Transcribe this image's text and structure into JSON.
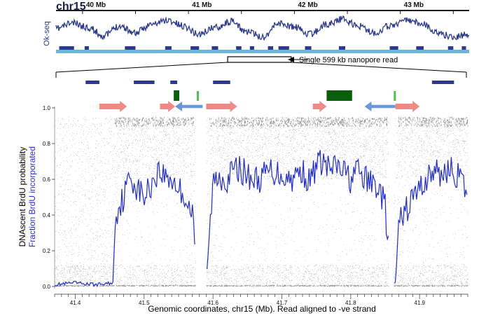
{
  "chart_data": [
    {
      "type": "line",
      "chrom_label": "chr15",
      "track_label": "Ok-seq",
      "xlim": [
        39.75,
        43.65
      ],
      "x_units": "Mb",
      "ticks": [
        40,
        40.5,
        41,
        41.5,
        42,
        42.5,
        43,
        43.5
      ],
      "tick_labels": [
        {
          "x": 40,
          "label": "40 Mb"
        },
        {
          "x": 41,
          "label": "41 Mb"
        },
        {
          "x": 42,
          "label": "42 Mb"
        },
        {
          "x": 43,
          "label": "43 Mb"
        }
      ],
      "okseq_profile": {
        "x": [
          39.75,
          39.9,
          40.05,
          40.2,
          40.35,
          40.5,
          40.65,
          40.8,
          40.95,
          41.1,
          41.25,
          41.4,
          41.55,
          41.7,
          41.85,
          42.0,
          42.15,
          42.3,
          42.45,
          42.6,
          42.75,
          42.9,
          43.05,
          43.2,
          43.35,
          43.5,
          43.65
        ],
        "values": [
          0.1,
          0.5,
          0.2,
          -0.4,
          0.3,
          -0.2,
          0.4,
          0.7,
          0.3,
          -0.3,
          0.2,
          0.6,
          -0.1,
          -0.5,
          0.5,
          0.2,
          -0.3,
          0.4,
          0.8,
          0.3,
          -0.2,
          0.3,
          0.7,
          0.5,
          -0.2,
          -0.5,
          -0.3
        ],
        "ylim": [
          -1,
          1
        ]
      },
      "segments_dark": [
        [
          39.78,
          39.92
        ],
        [
          40.02,
          40.06
        ],
        [
          40.4,
          40.5
        ],
        [
          40.78,
          40.84
        ],
        [
          41.02,
          41.1
        ],
        [
          41.22,
          41.28
        ],
        [
          41.45,
          41.5
        ],
        [
          41.58,
          41.62
        ],
        [
          41.75,
          41.8
        ],
        [
          41.85,
          41.95
        ],
        [
          42.1,
          42.16
        ],
        [
          42.42,
          42.48
        ],
        [
          42.9,
          42.98
        ],
        [
          43.15,
          43.22
        ],
        [
          43.45,
          43.5
        ],
        [
          43.58,
          43.62
        ]
      ],
      "segments_light": [
        [
          39.75,
          43.65
        ]
      ],
      "read_span": [
        41.37,
        41.97
      ],
      "read_annotation": "Single 599 kb nanopore read"
    },
    {
      "type": "scatter",
      "xlabel": "Genomic coordinates, chr15 (Mb). Read aligned to -ve strand",
      "ylabel": "DNAscent BrdU probability",
      "ylabel2": "Fraction BrdU incorporated",
      "xlim": [
        41.37,
        41.97
      ],
      "ylim": [
        0,
        1
      ],
      "x_ticks": [
        41.4,
        41.5,
        41.6,
        41.7,
        41.8,
        41.9
      ],
      "y_ticks": [
        0.0,
        0.2,
        0.4,
        0.6,
        0.8,
        1.0
      ],
      "y_tick_labels": [
        "0.0",
        "0.2",
        "0.4",
        "0.6",
        "0.8",
        "1.0"
      ],
      "gaps": [
        [
          41.575,
          41.59
        ],
        [
          41.855,
          41.862
        ]
      ],
      "fraction_brdu": {
        "x": [
          41.37,
          41.4,
          41.43,
          41.455,
          41.458,
          41.47,
          41.48,
          41.49,
          41.5,
          41.51,
          41.52,
          41.53,
          41.54,
          41.55,
          41.56,
          41.57,
          41.575,
          41.58,
          41.59,
          41.595,
          41.6,
          41.61,
          41.62,
          41.63,
          41.64,
          41.65,
          41.66,
          41.67,
          41.68,
          41.69,
          41.7,
          41.71,
          41.72,
          41.73,
          41.74,
          41.75,
          41.76,
          41.77,
          41.78,
          41.79,
          41.8,
          41.81,
          41.82,
          41.83,
          41.84,
          41.85,
          41.855,
          41.86,
          41.865,
          41.87,
          41.88,
          41.89,
          41.9,
          41.91,
          41.92,
          41.93,
          41.94,
          41.95,
          41.96,
          41.97
        ],
        "y": [
          0.01,
          0.02,
          0.01,
          0.02,
          0.4,
          0.5,
          0.62,
          0.55,
          0.5,
          0.57,
          0.65,
          0.62,
          0.6,
          0.55,
          0.5,
          0.4,
          0.15,
          0.02,
          0.02,
          0.3,
          0.58,
          0.62,
          0.6,
          0.65,
          0.66,
          0.62,
          0.6,
          0.6,
          0.65,
          0.64,
          0.63,
          0.6,
          0.62,
          0.65,
          0.58,
          0.68,
          0.7,
          0.65,
          0.67,
          0.64,
          0.6,
          0.65,
          0.6,
          0.58,
          0.56,
          0.45,
          0.2,
          0.02,
          0.02,
          0.35,
          0.42,
          0.5,
          0.55,
          0.6,
          0.65,
          0.62,
          0.66,
          0.64,
          0.6,
          0.5
        ]
      },
      "annotations": {
        "blue_bars": [
          [
            41.415,
            41.435
          ],
          [
            41.485,
            41.515
          ],
          [
            41.538,
            41.548
          ],
          [
            41.6,
            41.625
          ],
          [
            41.918,
            41.95
          ]
        ],
        "green_blocks": [
          [
            41.543,
            41.551
          ],
          [
            41.765,
            41.802
          ]
        ],
        "green_ticks": [
          41.578,
          41.864
        ],
        "pink_arrows_right": [
          [
            41.435,
            41.475
          ],
          [
            41.523,
            41.545
          ],
          [
            41.59,
            41.635
          ],
          [
            41.745,
            41.765
          ],
          [
            41.865,
            41.9
          ]
        ],
        "blue_arrows_left": [
          [
            41.545,
            41.585
          ],
          [
            41.82,
            41.865
          ]
        ]
      },
      "colors": {
        "profile": "#2b3a8f",
        "fraction_line": "#1f2bd6",
        "light_segment": "#6bb6dd",
        "dark_segment": "#2b3a8f",
        "blue_bar": "#2b3a8f",
        "green": "#0b5e0b",
        "green_tick": "#4cc44c",
        "pink_arrow": "#f08a84",
        "blue_arrow": "#6b98d8"
      }
    }
  ]
}
